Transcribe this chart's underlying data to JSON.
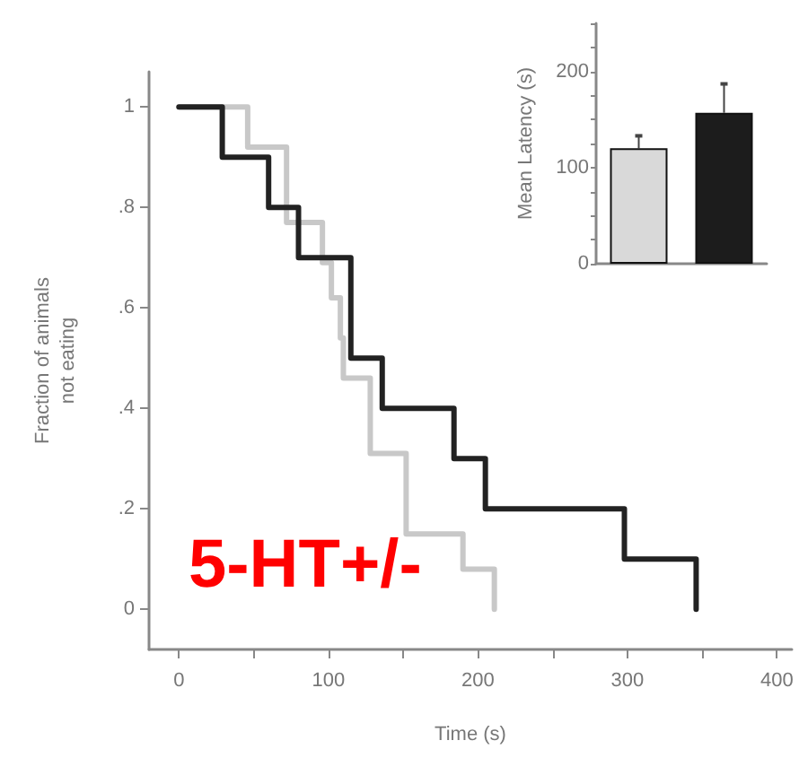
{
  "chart_data": [
    {
      "type": "step",
      "xlabel": "Time (s)",
      "ylabel": "Fraction of animals\nnot eating",
      "xlim": [
        -20,
        410
      ],
      "ylim": [
        -0.08,
        1.07
      ],
      "xticks": [
        0,
        {
          "value": 50,
          "label": null
        },
        100,
        {
          "value": 150,
          "label": null
        },
        200,
        {
          "value": 250,
          "label": null
        },
        300,
        {
          "value": 350,
          "label": null
        },
        400
      ],
      "yticks": [
        {
          "value": 0,
          "label": "0"
        },
        {
          "value": 0.2,
          "label": ".2"
        },
        {
          "value": 0.4,
          "label": ".4"
        },
        {
          "value": 0.6,
          "label": ".6"
        },
        {
          "value": 0.8,
          "label": ".8"
        },
        {
          "value": 1,
          "label": "1"
        }
      ],
      "series": [
        {
          "color": "#c8c8c8",
          "x": [
            0,
            46,
            72,
            96,
            102,
            108,
            110,
            128,
            152,
            190,
            211
          ],
          "values": [
            1,
            0.92,
            0.77,
            0.69,
            0.62,
            0.54,
            0.46,
            0.31,
            0.15,
            0.08,
            0
          ]
        },
        {
          "color": "#222222",
          "x": [
            0,
            29,
            60,
            80,
            115,
            136,
            184,
            205,
            298,
            346
          ],
          "values": [
            1,
            0.9,
            0.8,
            0.7,
            0.5,
            0.4,
            0.3,
            0.2,
            0.1,
            0
          ]
        }
      ],
      "annotations": [
        "5-HT+/-"
      ],
      "grid": false,
      "marker": "none",
      "line_style": "solid"
    },
    {
      "type": "bar",
      "ylabel": "Mean Latency (s)",
      "categories": [
        null,
        null
      ],
      "values": [
        120,
        157
      ],
      "errors": [
        13,
        30
      ],
      "colors": [
        "#d9d9d9",
        "#1c1c1c"
      ],
      "ylim": [
        0,
        250
      ],
      "yticks": [
        0,
        {
          "value": 25,
          "label": null
        },
        {
          "value": 50,
          "label": null
        },
        {
          "value": 75,
          "label": null
        },
        100,
        {
          "value": 125,
          "label": null
        },
        {
          "value": 150,
          "label": null
        },
        {
          "value": 175,
          "label": null
        },
        200,
        {
          "value": 225,
          "label": null
        },
        {
          "value": 250,
          "label": null
        }
      ],
      "grid": false
    }
  ]
}
